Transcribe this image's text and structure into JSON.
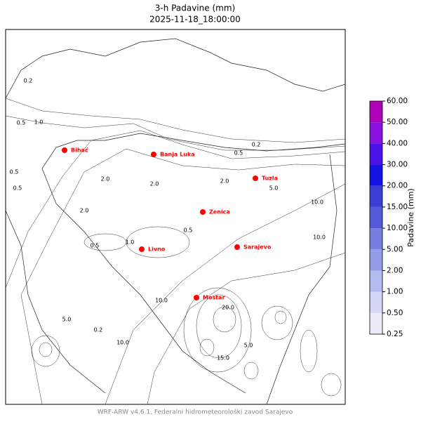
{
  "title": "3-h Padavine (mm)",
  "subtitle": "2025-11-18_18:00:00",
  "footer": "WRF-ARW v4.6.1, Federalni hidrometeorološki zavod Sarajevo",
  "cities": [
    "Bihać",
    "Banja Luka",
    "Tuzla",
    "Zenica",
    "Livno",
    "Sarajevo",
    "Mostar"
  ],
  "contour_labels": [
    "0.2",
    "0.5",
    "1.0",
    "0.5",
    "0.5",
    "2.0",
    "2.0",
    "0.5",
    "0.2",
    "2.0",
    "5.0",
    "10.0",
    "10.0",
    "2.0",
    "1.0",
    "0.5",
    "0.5",
    "10.0",
    "10.0",
    "5.0",
    "20.0",
    "15.0",
    "5.0",
    "0.2"
  ],
  "colorbar": {
    "label": "Padavine (mm)",
    "ticks": [
      0.25,
      {
        "value": 0.5,
        "label": "0.50"
      },
      {
        "value": 1,
        "label": "1.00"
      },
      {
        "value": 2,
        "label": "2.00"
      },
      {
        "value": 5,
        "label": "5.00"
      },
      {
        "value": 10,
        "label": "10.00"
      },
      {
        "value": 15,
        "label": "15.00"
      },
      {
        "value": 20,
        "label": "20.00"
      },
      {
        "value": 30,
        "label": "30.00"
      },
      {
        "value": 40,
        "label": "40.00"
      },
      {
        "value": 50,
        "label": "50.00"
      },
      {
        "value": 60,
        "label": "60.00"
      }
    ],
    "colors": [
      "#ececf9",
      "#d3d6f5",
      "#b3bbef",
      "#949de7",
      "#757edf",
      "#5459d7",
      "#3a3ed4",
      "#1414e6",
      "#4b12ea",
      "#8a12e0",
      "#b000b8"
    ]
  }
}
